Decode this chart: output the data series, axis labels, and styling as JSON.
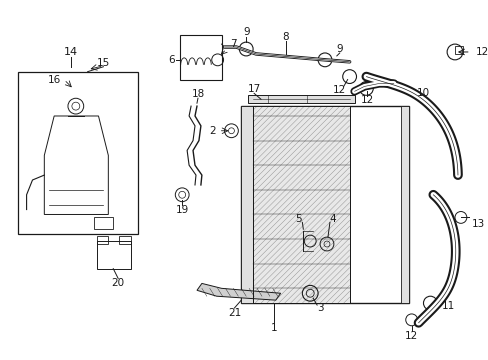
{
  "bg_color": "#ffffff",
  "line_color": "#1a1a1a",
  "gray_fill": "#d8d8d8",
  "light_gray": "#e8e8e8"
}
